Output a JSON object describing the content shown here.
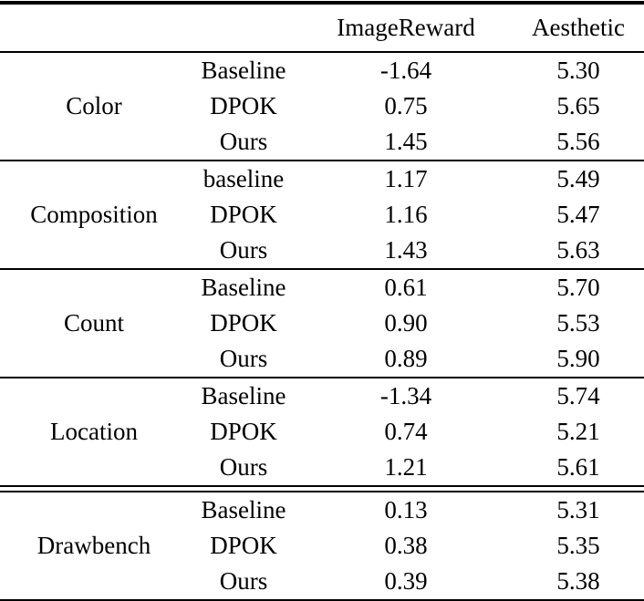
{
  "table": {
    "header": {
      "category": "",
      "method": "",
      "imagereward": "ImageReward",
      "aesthetic": "Aesthetic"
    },
    "groups": [
      {
        "category": "Color",
        "separator_after": "single",
        "rows": [
          {
            "method": "Baseline",
            "imagereward": {
              "value": "-1.64",
              "bold": false
            },
            "aesthetic": {
              "value": "5.30",
              "bold": false
            }
          },
          {
            "method": "DPOK",
            "imagereward": {
              "value": "0.75",
              "bold": false
            },
            "aesthetic": {
              "value": "5.65",
              "bold": true
            }
          },
          {
            "method": "Ours",
            "imagereward": {
              "value": "1.45",
              "bold": true
            },
            "aesthetic": {
              "value": "5.56",
              "bold": false
            }
          }
        ]
      },
      {
        "category": "Composition",
        "separator_after": "single",
        "rows": [
          {
            "method": "baseline",
            "imagereward": {
              "value": "1.17",
              "bold": false
            },
            "aesthetic": {
              "value": "5.49",
              "bold": false
            }
          },
          {
            "method": "DPOK",
            "imagereward": {
              "value": "1.16",
              "bold": false
            },
            "aesthetic": {
              "value": "5.47",
              "bold": false
            }
          },
          {
            "method": "Ours",
            "imagereward": {
              "value": "1.43",
              "bold": true
            },
            "aesthetic": {
              "value": "5.63",
              "bold": true
            }
          }
        ]
      },
      {
        "category": "Count",
        "separator_after": "single",
        "rows": [
          {
            "method": "Baseline",
            "imagereward": {
              "value": "0.61",
              "bold": false
            },
            "aesthetic": {
              "value": "5.70",
              "bold": false
            }
          },
          {
            "method": "DPOK",
            "imagereward": {
              "value": "0.90",
              "bold": true
            },
            "aesthetic": {
              "value": "5.53",
              "bold": false
            }
          },
          {
            "method": "Ours",
            "imagereward": {
              "value": "0.89",
              "bold": false
            },
            "aesthetic": {
              "value": "5.90",
              "bold": true
            }
          }
        ]
      },
      {
        "category": "Location",
        "separator_after": "double",
        "rows": [
          {
            "method": "Baseline",
            "imagereward": {
              "value": "-1.34",
              "bold": false
            },
            "aesthetic": {
              "value": "5.74",
              "bold": true
            }
          },
          {
            "method": "DPOK",
            "imagereward": {
              "value": "0.74",
              "bold": false
            },
            "aesthetic": {
              "value": "5.21",
              "bold": false
            }
          },
          {
            "method": "Ours",
            "imagereward": {
              "value": "1.21",
              "bold": true
            },
            "aesthetic": {
              "value": "5.61",
              "bold": false
            }
          }
        ]
      },
      {
        "category": "Drawbench",
        "separator_after": "none",
        "rows": [
          {
            "method": "Baseline",
            "imagereward": {
              "value": "0.13",
              "bold": false
            },
            "aesthetic": {
              "value": "5.31",
              "bold": false
            }
          },
          {
            "method": "DPOK",
            "imagereward": {
              "value": "0.38",
              "bold": false
            },
            "aesthetic": {
              "value": "5.35",
              "bold": false
            }
          },
          {
            "method": "Ours",
            "imagereward": {
              "value": "0.39",
              "bold": true
            },
            "aesthetic": {
              "value": "5.38",
              "bold": true
            }
          }
        ]
      }
    ]
  }
}
